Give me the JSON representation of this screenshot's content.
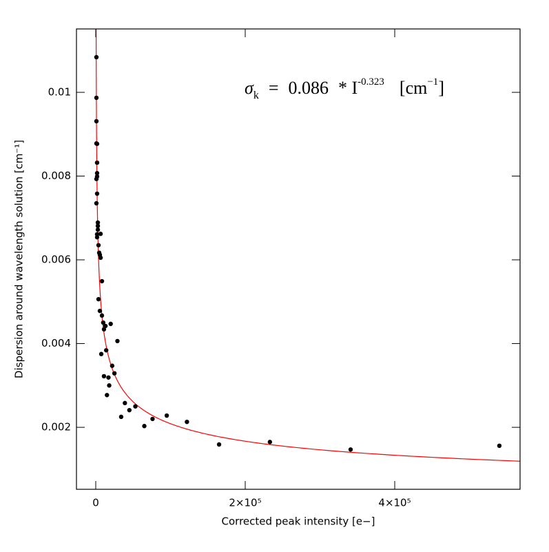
{
  "chart_data": {
    "type": "scatter",
    "xlabel": "Corrected peak intensity [e−]",
    "ylabel": "Dispersion around wavelength solution [cm⁻¹]",
    "xlim": [
      -25800,
      567700
    ],
    "ylim": [
      0.00052,
      0.011514
    ],
    "xticks": [
      0,
      {
        "value": 200000,
        "label": "2×10⁵"
      },
      {
        "value": 400000,
        "label": "4×10⁵"
      }
    ],
    "yticks": [
      0.002,
      0.004,
      0.006,
      0.008,
      0.01
    ],
    "point_color": "#000000",
    "x": [
      900,
      900,
      900,
      900,
      1800,
      1800,
      1800,
      1800,
      900,
      1800,
      900,
      2800,
      2800,
      2800,
      1800,
      1800,
      6500,
      3700,
      4600,
      5500,
      6500,
      8300,
      3700,
      5500,
      8300,
      10000,
      13000,
      11000,
      20000,
      29000,
      14000,
      7400,
      22000,
      25000,
      11000,
      17000,
      18000,
      15000,
      39000,
      45000,
      34000,
      53000,
      65000,
      76000,
      95000,
      122000,
      165000,
      233000,
      341000,
      540000
    ],
    "values": [
      0.01084,
      0.00987,
      0.00931,
      0.00878,
      0.00877,
      0.00832,
      0.00807,
      0.00799,
      0.00793,
      0.00758,
      0.00735,
      0.00689,
      0.00681,
      0.00672,
      0.00661,
      0.00654,
      0.00662,
      0.00635,
      0.00617,
      0.00612,
      0.00605,
      0.00549,
      0.00506,
      0.00478,
      0.00467,
      0.0045,
      0.00442,
      0.00434,
      0.00447,
      0.00406,
      0.00384,
      0.00375,
      0.00347,
      0.00329,
      0.00322,
      0.00319,
      0.003,
      0.00277,
      0.00258,
      0.00241,
      0.00225,
      0.0025,
      0.00203,
      0.0022,
      0.00228,
      0.00213,
      0.00159,
      0.00165,
      0.00147,
      0.00156
    ],
    "fit": {
      "coefficient": 0.086,
      "exponent": -0.323,
      "color": "#ff0000"
    },
    "equation": {
      "symbol": "σ",
      "subscript": "k",
      "equals": "=",
      "times": "* I",
      "unit": "[cm",
      "unit_superscript": "−1",
      "unit_end": "]"
    }
  }
}
